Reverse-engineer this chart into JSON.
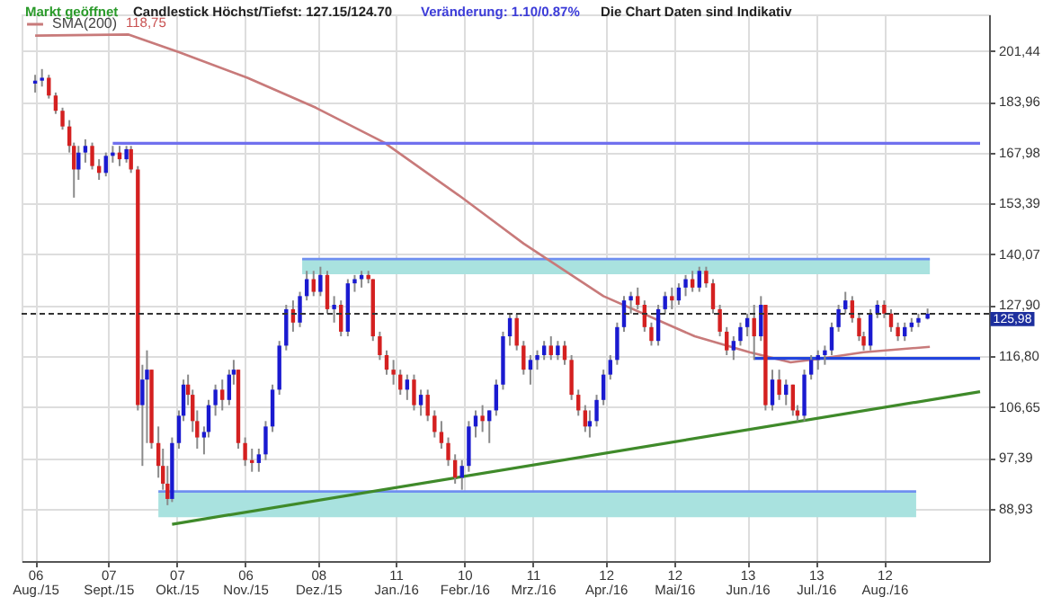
{
  "chart_data": {
    "type": "candlestick",
    "annotations": [
      "Markt geöffnet",
      "Candlestick Höchst/Tiefst: 127.15/124.70",
      "Veränderung: 1.10/0.87%",
      "Die Chart Daten sind Indikativ",
      "118,75"
    ],
    "xlim": [
      "2015-08-04",
      "2016-09-23"
    ],
    "xticks": [
      {
        "value": "2015-08-06",
        "label": "06 Aug./15"
      },
      {
        "value": "2015-09-07",
        "label": "07 Sept./15"
      },
      {
        "value": "2015-10-07",
        "label": "07 Okt./15"
      },
      {
        "value": "2015-11-06",
        "label": "06 Nov./15"
      },
      {
        "value": "2015-12-08",
        "label": "08 Dez./15"
      },
      {
        "value": "2016-01-11",
        "label": "11 Jan./16"
      },
      {
        "value": "2016-02-10",
        "label": "10 Febr./16"
      },
      {
        "value": "2016-03-11",
        "label": "11 Mrz./16"
      },
      {
        "value": "2016-04-12",
        "label": "12 Apr./16"
      },
      {
        "value": "2016-05-12",
        "label": "12 Mai/16"
      },
      {
        "value": "2016-06-13",
        "label": "13 Jun./16"
      },
      {
        "value": "2016-07-13",
        "label": "13 Jul./16"
      },
      {
        "value": "2016-08-12",
        "label": "12 Aug./16"
      }
    ],
    "ylim": [
      81,
      215
    ],
    "log": true,
    "yticks": [
      {
        "value": 88.93,
        "label": "88,93"
      },
      {
        "value": 97.39,
        "label": "97,39"
      },
      {
        "value": 106.65,
        "label": "106,65"
      },
      {
        "value": 116.8,
        "label": "116,80"
      },
      {
        "value": 127.9,
        "label": "127,90"
      },
      {
        "value": 140.07,
        "label": "140,07"
      },
      {
        "value": 153.39,
        "label": "153,39"
      },
      {
        "value": 167.98,
        "label": "167,98"
      },
      {
        "value": 183.96,
        "label": "183,96"
      },
      {
        "value": 201.44,
        "label": "201,44"
      }
    ],
    "grid": true,
    "legend": "top left",
    "ref_lines": [
      {
        "axis": "y",
        "value": 125.98,
        "label": "125,98",
        "line_style": "dashed",
        "color": "#333333"
      }
    ],
    "series": [
      {
        "type": "line",
        "color": "#6f8ff0",
        "x": [
          "2015-12-01",
          "2016-09-01"
        ],
        "values": [
          138.9,
          138.9
        ],
        "upper": [
          138.9,
          138.9
        ],
        "lower": [
          135.2,
          135.2
        ]
      },
      {
        "type": "line",
        "color": "#6f8ff0",
        "x": [
          "2015-09-29",
          "2016-08-26"
        ],
        "values": [
          91.7,
          91.7
        ],
        "upper": [
          91.7,
          91.7
        ],
        "lower": [
          87.6,
          87.6
        ]
      },
      {
        "type": "line",
        "name": "SMA(200)",
        "color": "#c87a7a",
        "x": [
          "2015-08-06",
          "2015-09-16",
          "2015-10-08",
          "2015-11-07",
          "2015-12-07",
          "2016-01-06",
          "2016-02-09",
          "2016-03-07",
          "2016-04-11",
          "2016-05-21",
          "2016-06-14",
          "2016-07-02",
          "2016-07-14",
          "2016-08-03",
          "2016-09-01"
        ],
        "values": [
          207,
          207.4,
          201,
          192,
          182,
          171,
          155,
          142.8,
          130,
          121,
          117.6,
          115.5,
          116.2,
          117.6,
          118.75
        ]
      },
      {
        "type": "line",
        "color": "#7070ee",
        "x": [
          "2015-09-09",
          "2016-09-23"
        ],
        "values": [
          170.8,
          170.8
        ]
      },
      {
        "type": "line",
        "color": "#2244dd",
        "x": [
          "2016-06-16",
          "2016-09-23"
        ],
        "values": [
          116.3,
          116.3
        ]
      },
      {
        "type": "line",
        "color": "#3f8a2a",
        "x": [
          "2015-10-05",
          "2016-09-23"
        ],
        "values": [
          86.5,
          109.6
        ]
      },
      {
        "type": "candlestick",
        "color": "#1a1ad0",
        "x": [
          "2015-08-06",
          "2015-08-09",
          "2015-08-25",
          "2015-08-28",
          "2015-09-06",
          "2015-09-09",
          "2015-09-15",
          "2015-09-22",
          "2015-09-24",
          "2015-10-05",
          "2015-10-08",
          "2015-10-10",
          "2015-10-19",
          "2015-10-21",
          "2015-10-24",
          "2015-10-30",
          "2015-11-01",
          "2015-11-12",
          "2015-11-15",
          "2015-11-18",
          "2015-11-21",
          "2015-11-24",
          "2015-11-30",
          "2015-12-03",
          "2015-12-09",
          "2015-12-15",
          "2015-12-21",
          "2015-12-24",
          "2015-12-27",
          "2016-01-16",
          "2016-01-22",
          "2016-02-09",
          "2016-02-12",
          "2016-02-15",
          "2016-02-21",
          "2016-02-24",
          "2016-02-27",
          "2016-03-01",
          "2016-03-10",
          "2016-03-13",
          "2016-03-16",
          "2016-03-22",
          "2016-04-05",
          "2016-04-08",
          "2016-04-11",
          "2016-04-14",
          "2016-04-17",
          "2016-04-20",
          "2016-04-23",
          "2016-05-05",
          "2016-05-08",
          "2016-05-14",
          "2016-05-17",
          "2016-05-23",
          "2016-06-07",
          "2016-06-10",
          "2016-06-13",
          "2016-06-19",
          "2016-06-24",
          "2016-06-30",
          "2016-07-08",
          "2016-07-11",
          "2016-07-14",
          "2016-07-17",
          "2016-07-20",
          "2016-07-23",
          "2016-07-26",
          "2016-08-06",
          "2016-08-09",
          "2016-08-21",
          "2016-08-24",
          "2016-08-27",
          "2016-08-31"
        ],
        "ohlc": [
          [
            190,
            193,
            187,
            191
          ],
          [
            191,
            195,
            189,
            192
          ],
          [
            163,
            170,
            160,
            168
          ],
          [
            168,
            172,
            165,
            170
          ],
          [
            162,
            168,
            161,
            167
          ],
          [
            167,
            170,
            165,
            168
          ],
          [
            166,
            170,
            165,
            169
          ],
          [
            107,
            115,
            96,
            112
          ],
          [
            112,
            118,
            100,
            114
          ],
          [
            90.5,
            101,
            90,
            100
          ],
          [
            100,
            106,
            99,
            105
          ],
          [
            105,
            112,
            104,
            111
          ],
          [
            101,
            103,
            98,
            102
          ],
          [
            102,
            108,
            101,
            107
          ],
          [
            107,
            111,
            105,
            110
          ],
          [
            108,
            114,
            107,
            113
          ],
          [
            113,
            116,
            111,
            114
          ],
          [
            96.5,
            99,
            95,
            98
          ],
          [
            98,
            104,
            97,
            103
          ],
          [
            103,
            111,
            102,
            110
          ],
          [
            110,
            120,
            109,
            119
          ],
          [
            119,
            128,
            118,
            127
          ],
          [
            124,
            131,
            123,
            130
          ],
          [
            130,
            136,
            129,
            134
          ],
          [
            131,
            137,
            130,
            135
          ],
          [
            127,
            130,
            124,
            128
          ],
          [
            122,
            134,
            121,
            133
          ],
          [
            133,
            135,
            131,
            134
          ],
          [
            134,
            136,
            132,
            135
          ],
          [
            110,
            113,
            108,
            112
          ],
          [
            107,
            110,
            105,
            109
          ],
          [
            94,
            97,
            92,
            96
          ],
          [
            96,
            104,
            95,
            103
          ],
          [
            103,
            106,
            101,
            105
          ],
          [
            104,
            106,
            100,
            106
          ],
          [
            106,
            112,
            105,
            111
          ],
          [
            111,
            122,
            110,
            121
          ],
          [
            121,
            126,
            119,
            125
          ],
          [
            114,
            117,
            111,
            116
          ],
          [
            116,
            118,
            114,
            117
          ],
          [
            117,
            120,
            116,
            119
          ],
          [
            117,
            120,
            116,
            119
          ],
          [
            103,
            106,
            101,
            104
          ],
          [
            104,
            109,
            103,
            108
          ],
          [
            108,
            114,
            107,
            113
          ],
          [
            113,
            117,
            112,
            116
          ],
          [
            116,
            124,
            115,
            123
          ],
          [
            123,
            130,
            122,
            129
          ],
          [
            129,
            131,
            126,
            130
          ],
          [
            120,
            128,
            119,
            127
          ],
          [
            127,
            131,
            126,
            130
          ],
          [
            129,
            133,
            128,
            132
          ],
          [
            132,
            135,
            130,
            134
          ],
          [
            132,
            137,
            131,
            136
          ],
          [
            118,
            121,
            116,
            120
          ],
          [
            120,
            124,
            119,
            123
          ],
          [
            123,
            126,
            121,
            125
          ],
          [
            121,
            130,
            120,
            128
          ],
          [
            107,
            114,
            106,
            112
          ],
          [
            109,
            112,
            107,
            111
          ],
          [
            105,
            114,
            104,
            113
          ],
          [
            113,
            117,
            112,
            116
          ],
          [
            116,
            118,
            114,
            117
          ],
          [
            117,
            119,
            115,
            118
          ],
          [
            118,
            124,
            117,
            123
          ],
          [
            123,
            128,
            122,
            127
          ],
          [
            127,
            131,
            126,
            129
          ],
          [
            119,
            127,
            118,
            126
          ],
          [
            126,
            129,
            125,
            128
          ],
          [
            121,
            124,
            120,
            123
          ],
          [
            123,
            125,
            122,
            124
          ],
          [
            124,
            126,
            123,
            125
          ],
          [
            124.88,
            127.15,
            124.7,
            125.98
          ]
        ]
      },
      {
        "type": "candlestick",
        "color": "#d42020",
        "x": [
          "2015-08-12",
          "2015-08-15",
          "2015-08-18",
          "2015-08-21",
          "2015-08-23",
          "2015-08-31",
          "2015-09-03",
          "2015-09-12",
          "2015-09-17",
          "2015-09-20",
          "2015-09-26",
          "2015-09-29",
          "2015-10-01",
          "2015-10-03",
          "2015-10-12",
          "2015-10-14",
          "2015-10-16",
          "2015-10-27",
          "2015-11-03",
          "2015-11-06",
          "2015-11-09",
          "2015-11-27",
          "2015-12-06",
          "2015-12-12",
          "2015-12-18",
          "2015-12-30",
          "2016-01-01",
          "2016-01-04",
          "2016-01-07",
          "2016-01-10",
          "2016-01-13",
          "2016-01-19",
          "2016-01-25",
          "2016-01-28",
          "2016-01-31",
          "2016-02-03",
          "2016-02-06",
          "2016-02-18",
          "2016-03-04",
          "2016-03-07",
          "2016-03-19",
          "2016-03-25",
          "2016-03-28",
          "2016-03-31",
          "2016-04-03",
          "2016-04-26",
          "2016-04-29",
          "2016-05-02",
          "2016-05-11",
          "2016-05-20",
          "2016-05-26",
          "2016-05-29",
          "2016-06-01",
          "2016-06-04",
          "2016-06-16",
          "2016-06-21",
          "2016-06-27",
          "2016-07-03",
          "2016-07-05",
          "2016-07-29",
          "2016-08-01",
          "2016-08-03",
          "2016-08-12",
          "2016-08-15",
          "2016-08-18"
        ],
        "ohlc": [
          [
            192,
            193,
            185,
            186
          ],
          [
            186,
            187,
            180,
            181
          ],
          [
            181,
            182,
            175,
            176
          ],
          [
            176,
            178,
            168,
            170
          ],
          [
            170,
            171,
            155,
            163
          ],
          [
            170,
            171,
            163,
            164
          ],
          [
            164,
            166,
            160,
            162
          ],
          [
            168,
            170,
            164,
            166
          ],
          [
            169,
            170,
            162,
            163
          ],
          [
            163,
            164,
            106,
            107
          ],
          [
            114,
            114,
            99,
            100
          ],
          [
            100,
            103,
            94,
            96
          ],
          [
            96,
            99,
            92,
            93
          ],
          [
            93,
            96,
            89.5,
            90.5
          ],
          [
            111,
            113,
            107,
            109
          ],
          [
            109,
            110,
            102,
            104
          ],
          [
            104,
            106,
            99,
            101
          ],
          [
            110,
            112,
            106,
            108
          ],
          [
            114,
            114,
            99,
            100
          ],
          [
            100,
            101,
            96,
            97
          ],
          [
            97,
            99,
            95,
            96.5
          ],
          [
            127,
            129,
            122,
            124
          ],
          [
            134,
            136,
            130,
            131
          ],
          [
            135,
            136,
            126,
            127
          ],
          [
            128,
            129,
            121,
            122
          ],
          [
            135,
            136,
            133,
            134
          ],
          [
            134,
            134,
            120,
            121
          ],
          [
            121,
            122,
            116,
            117
          ],
          [
            117,
            118,
            113,
            114
          ],
          [
            114,
            116,
            111,
            113
          ],
          [
            113,
            114,
            109,
            110
          ],
          [
            112,
            113,
            106,
            107
          ],
          [
            109,
            110,
            104,
            105
          ],
          [
            105,
            106,
            101,
            102
          ],
          [
            102,
            104,
            99,
            100
          ],
          [
            100,
            101,
            96,
            97
          ],
          [
            97,
            98,
            93,
            94
          ],
          [
            105,
            107,
            102,
            104
          ],
          [
            125,
            126,
            118,
            119
          ],
          [
            119,
            120,
            113,
            114
          ],
          [
            119,
            121,
            116,
            117
          ],
          [
            119,
            120,
            115,
            116
          ],
          [
            116,
            117,
            108,
            109
          ],
          [
            109,
            110,
            105,
            106
          ],
          [
            106,
            107,
            102,
            103
          ],
          [
            130,
            132,
            127,
            128
          ],
          [
            128,
            129,
            122,
            123
          ],
          [
            123,
            124,
            119,
            120
          ],
          [
            130,
            132,
            127,
            129
          ],
          [
            134,
            136,
            131,
            132
          ],
          [
            136,
            137,
            132,
            133
          ],
          [
            133,
            134,
            126,
            127
          ],
          [
            127,
            128,
            121,
            122
          ],
          [
            122,
            123,
            117,
            118
          ],
          [
            125,
            128,
            116,
            121
          ],
          [
            128,
            128,
            106,
            107
          ],
          [
            112,
            114,
            108,
            109
          ],
          [
            111,
            111,
            105,
            106
          ],
          [
            106,
            107,
            104,
            105
          ],
          [
            129,
            130,
            124,
            125
          ],
          [
            125,
            126,
            120,
            121
          ],
          [
            121,
            122,
            118,
            119
          ],
          [
            128,
            129,
            125,
            126
          ],
          [
            126,
            127,
            122,
            123
          ],
          [
            123,
            124,
            120,
            121
          ]
        ]
      }
    ]
  }
}
